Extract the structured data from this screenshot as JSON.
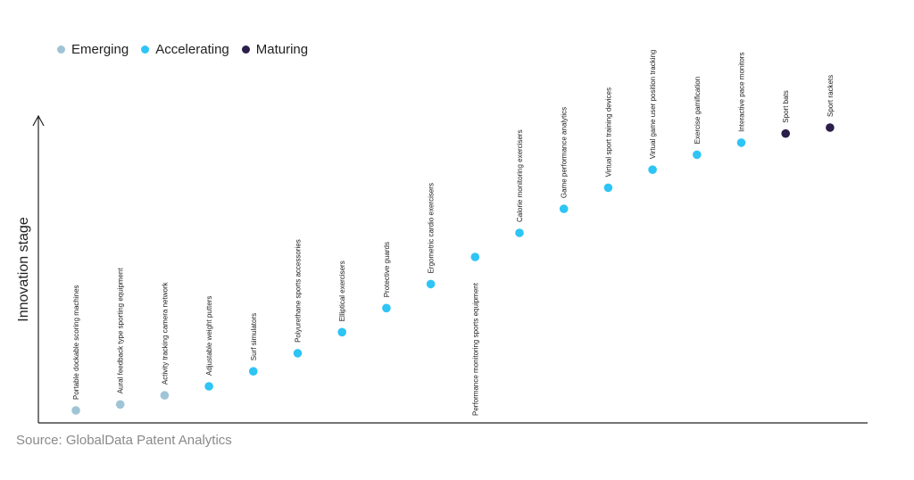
{
  "legend": {
    "emerging": {
      "label": "Emerging",
      "color": "#9fc4d6"
    },
    "accelerating": {
      "label": "Accelerating",
      "color": "#2ec4f5"
    },
    "maturing": {
      "label": "Maturing",
      "color": "#2b1e4a"
    }
  },
  "source": "Source: GlobalData Patent Analytics",
  "chart_data": {
    "type": "scatter",
    "title": "",
    "xlabel": "",
    "ylabel": "Innovation stage",
    "grid": false,
    "legend_position": "top-left",
    "points": [
      {
        "label": "Portable dockable scoring machines",
        "stage": "emerging",
        "y": 0.05
      },
      {
        "label": "Aural feedback type sporting equipment",
        "stage": "emerging",
        "y": 0.07
      },
      {
        "label": "Activity tracking camera network",
        "stage": "emerging",
        "y": 0.1
      },
      {
        "label": "Adjustable weight putters",
        "stage": "accelerating",
        "y": 0.13
      },
      {
        "label": "Surf simulators",
        "stage": "accelerating",
        "y": 0.18
      },
      {
        "label": "Polyurethane sports accessories",
        "stage": "accelerating",
        "y": 0.24
      },
      {
        "label": "Elliptical exercisers",
        "stage": "accelerating",
        "y": 0.31
      },
      {
        "label": "Protective guards",
        "stage": "accelerating",
        "y": 0.39
      },
      {
        "label": "Ergometric cardio exercisers",
        "stage": "accelerating",
        "y": 0.47
      },
      {
        "label": "Performance monitoring sports equipment",
        "stage": "accelerating",
        "y": 0.56
      },
      {
        "label": "Calorie monitoring exercisers",
        "stage": "accelerating",
        "y": 0.64
      },
      {
        "label": "Game performance analytics",
        "stage": "accelerating",
        "y": 0.72
      },
      {
        "label": "Virtual sport training devices",
        "stage": "accelerating",
        "y": 0.79
      },
      {
        "label": "Virtual game user position tracking",
        "stage": "accelerating",
        "y": 0.85
      },
      {
        "label": "Exercise gamification",
        "stage": "accelerating",
        "y": 0.9
      },
      {
        "label": "Interactive pace monitors",
        "stage": "accelerating",
        "y": 0.94
      },
      {
        "label": "Sport bats",
        "stage": "maturing",
        "y": 0.97
      },
      {
        "label": "Sport rackets",
        "stage": "maturing",
        "y": 0.99
      }
    ]
  }
}
